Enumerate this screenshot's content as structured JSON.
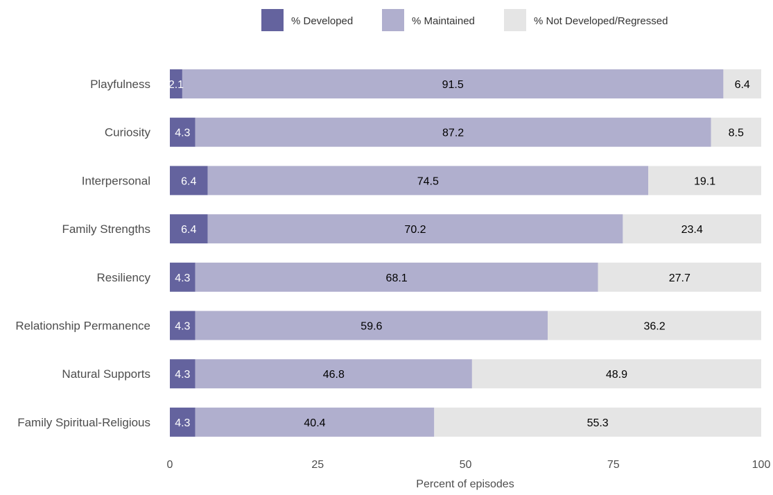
{
  "chart_data": {
    "type": "bar",
    "orientation": "horizontal",
    "stacked": true,
    "title": "",
    "xlabel": "Percent of episodes",
    "ylabel": "",
    "xlim": [
      0,
      100
    ],
    "xticks": [
      0,
      25,
      50,
      75,
      100
    ],
    "grid": false,
    "legend_position": "top",
    "categories": [
      "Playfulness",
      "Curiosity",
      "Interpersonal",
      "Family Strengths",
      "Resiliency",
      "Relationship Permanence",
      "Natural Supports",
      "Family Spiritual-Religious"
    ],
    "series": [
      {
        "name": "% Developed",
        "color": "#64639e",
        "label_color": "#ffffff",
        "values": [
          2.1,
          4.3,
          6.4,
          6.4,
          4.3,
          4.3,
          4.3,
          4.3
        ]
      },
      {
        "name": "% Maintained",
        "color": "#b0afce",
        "label_color": "#000000",
        "values": [
          91.5,
          87.2,
          74.5,
          70.2,
          68.1,
          59.6,
          46.8,
          40.4
        ]
      },
      {
        "name": "% Not Developed/Regressed",
        "color": "#e5e5e5",
        "label_color": "#000000",
        "values": [
          6.4,
          8.5,
          19.1,
          23.4,
          27.7,
          36.2,
          48.9,
          55.3
        ]
      }
    ]
  }
}
